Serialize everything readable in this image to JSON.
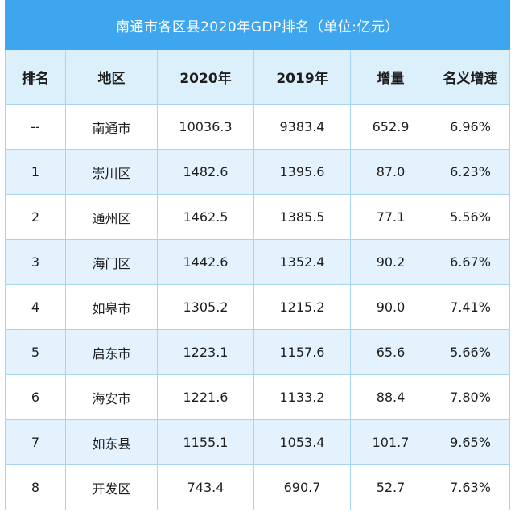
{
  "colors": {
    "title_bar": "#3ea6ee",
    "header_row": "#dcf0fc",
    "stripe_row": "#e3f2fd",
    "grid_line": "#a7d4f3"
  },
  "chart_data": {
    "type": "table",
    "title": "南通市各区县2020年GDP排名（单位:亿元）",
    "columns": [
      "排名",
      "地区",
      "2020年",
      "2019年",
      "增量",
      "名义增速"
    ],
    "rows": [
      [
        "--",
        "南通市",
        "10036.3",
        "9383.4",
        "652.9",
        "6.96%"
      ],
      [
        "1",
        "崇川区",
        "1482.6",
        "1395.6",
        "87.0",
        "6.23%"
      ],
      [
        "2",
        "通州区",
        "1462.5",
        "1385.5",
        "77.1",
        "5.56%"
      ],
      [
        "3",
        "海门区",
        "1442.6",
        "1352.4",
        "90.2",
        "6.67%"
      ],
      [
        "4",
        "如皋市",
        "1305.2",
        "1215.2",
        "90.0",
        "7.41%"
      ],
      [
        "5",
        "启东市",
        "1223.1",
        "1157.6",
        "65.6",
        "5.66%"
      ],
      [
        "6",
        "海安市",
        "1221.6",
        "1133.2",
        "88.4",
        "7.80%"
      ],
      [
        "7",
        "如东县",
        "1155.1",
        "1053.4",
        "101.7",
        "9.65%"
      ],
      [
        "8",
        "开发区",
        "743.4",
        "690.7",
        "52.7",
        "7.63%"
      ]
    ]
  }
}
